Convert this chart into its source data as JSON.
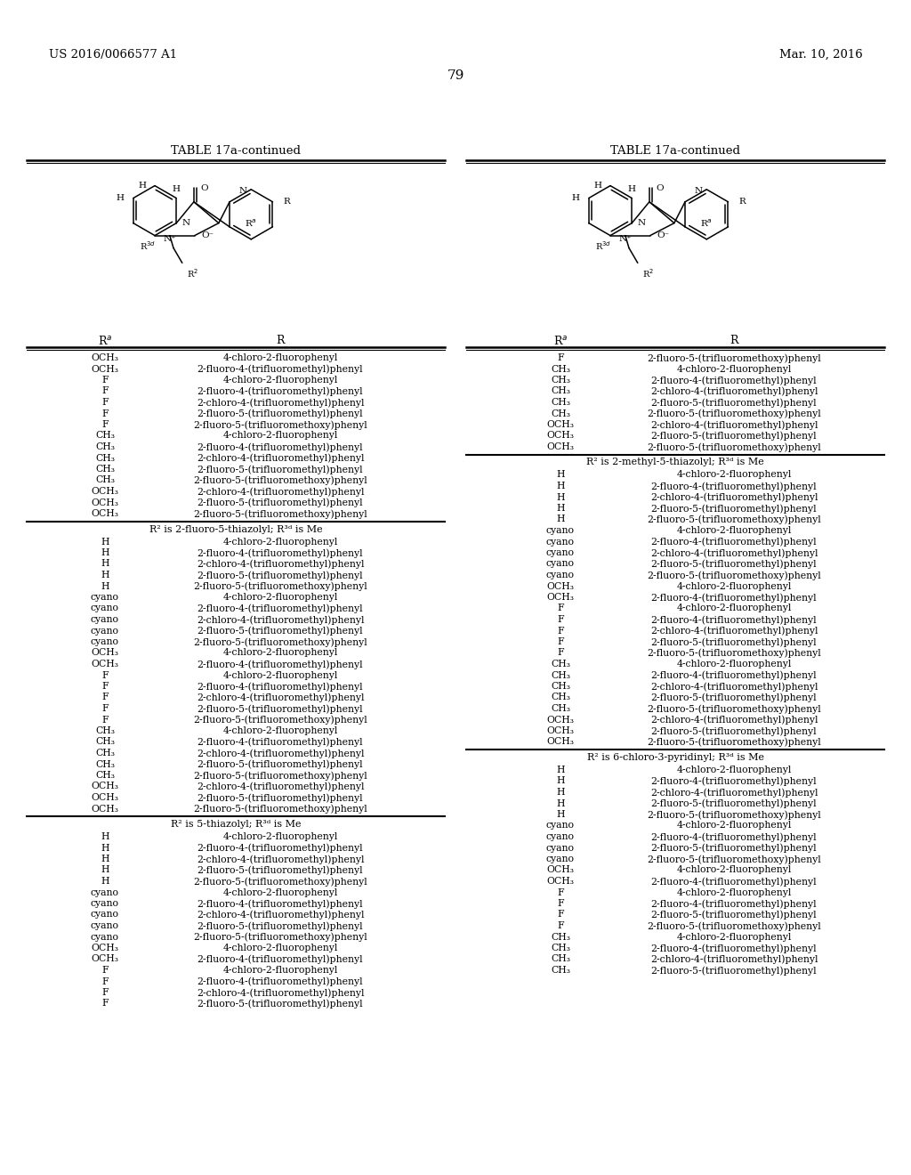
{
  "patent_number": "US 2016/0066577 A1",
  "patent_date": "Mar. 10, 2016",
  "page_number": "79",
  "table_title": "TABLE 17a-continued",
  "background_color": "#ffffff",
  "text_color": "#000000",
  "left_table": {
    "sections": [
      {
        "rows": [
          [
            "OCH₃",
            "4-chloro-2-fluorophenyl"
          ],
          [
            "OCH₃",
            "2-fluoro-4-(trifluoromethyl)phenyl"
          ],
          [
            "F",
            "4-chloro-2-fluorophenyl"
          ],
          [
            "F",
            "2-fluoro-4-(trifluoromethyl)phenyl"
          ],
          [
            "F",
            "2-chloro-4-(trifluoromethyl)phenyl"
          ],
          [
            "F",
            "2-fluoro-5-(trifluoromethyl)phenyl"
          ],
          [
            "F",
            "2-fluoro-5-(trifluoromethoxy)phenyl"
          ],
          [
            "CH₃",
            "4-chloro-2-fluorophenyl"
          ],
          [
            "CH₃",
            "2-fluoro-4-(trifluoromethyl)phenyl"
          ],
          [
            "CH₃",
            "2-chloro-4-(trifluoromethyl)phenyl"
          ],
          [
            "CH₃",
            "2-fluoro-5-(trifluoromethyl)phenyl"
          ],
          [
            "CH₃",
            "2-fluoro-5-(trifluoromethoxy)phenyl"
          ],
          [
            "OCH₃",
            "2-chloro-4-(trifluoromethyl)phenyl"
          ],
          [
            "OCH₃",
            "2-fluoro-5-(trifluoromethyl)phenyl"
          ],
          [
            "OCH₃",
            "2-fluoro-5-(trifluoromethoxy)phenyl"
          ]
        ],
        "section_label": "R² is 2-fluoro-5-thiazolyl; R³ᵈ is Me"
      },
      {
        "rows": [
          [
            "H",
            "4-chloro-2-fluorophenyl"
          ],
          [
            "H",
            "2-fluoro-4-(trifluoromethyl)phenyl"
          ],
          [
            "H",
            "2-chloro-4-(trifluoromethyl)phenyl"
          ],
          [
            "H",
            "2-fluoro-5-(trifluoromethyl)phenyl"
          ],
          [
            "H",
            "2-fluoro-5-(trifluoromethoxy)phenyl"
          ],
          [
            "cyano",
            "4-chloro-2-fluorophenyl"
          ],
          [
            "cyano",
            "2-fluoro-4-(trifluoromethyl)phenyl"
          ],
          [
            "cyano",
            "2-chloro-4-(trifluoromethyl)phenyl"
          ],
          [
            "cyano",
            "2-fluoro-5-(trifluoromethyl)phenyl"
          ],
          [
            "cyano",
            "2-fluoro-5-(trifluoromethoxy)phenyl"
          ],
          [
            "OCH₃",
            "4-chloro-2-fluorophenyl"
          ],
          [
            "OCH₃",
            "2-fluoro-4-(trifluoromethyl)phenyl"
          ],
          [
            "F",
            "4-chloro-2-fluorophenyl"
          ],
          [
            "F",
            "2-fluoro-4-(trifluoromethyl)phenyl"
          ],
          [
            "F",
            "2-chloro-4-(trifluoromethyl)phenyl"
          ],
          [
            "F",
            "2-fluoro-5-(trifluoromethyl)phenyl"
          ],
          [
            "F",
            "2-fluoro-5-(trifluoromethoxy)phenyl"
          ],
          [
            "CH₃",
            "4-chloro-2-fluorophenyl"
          ],
          [
            "CH₃",
            "2-fluoro-4-(trifluoromethyl)phenyl"
          ],
          [
            "CH₃",
            "2-chloro-4-(trifluoromethyl)phenyl"
          ],
          [
            "CH₃",
            "2-fluoro-5-(trifluoromethyl)phenyl"
          ],
          [
            "CH₃",
            "2-fluoro-5-(trifluoromethoxy)phenyl"
          ],
          [
            "OCH₃",
            "2-chloro-4-(trifluoromethyl)phenyl"
          ],
          [
            "OCH₃",
            "2-fluoro-5-(trifluoromethyl)phenyl"
          ],
          [
            "OCH₃",
            "2-fluoro-5-(trifluoromethoxy)phenyl"
          ]
        ],
        "section_label": "R² is 5-thiazolyl; R³ᵈ is Me"
      },
      {
        "rows": [
          [
            "H",
            "4-chloro-2-fluorophenyl"
          ],
          [
            "H",
            "2-fluoro-4-(trifluoromethyl)phenyl"
          ],
          [
            "H",
            "2-chloro-4-(trifluoromethyl)phenyl"
          ],
          [
            "H",
            "2-fluoro-5-(trifluoromethyl)phenyl"
          ],
          [
            "H",
            "2-fluoro-5-(trifluoromethoxy)phenyl"
          ],
          [
            "cyano",
            "4-chloro-2-fluorophenyl"
          ],
          [
            "cyano",
            "2-fluoro-4-(trifluoromethyl)phenyl"
          ],
          [
            "cyano",
            "2-chloro-4-(trifluoromethyl)phenyl"
          ],
          [
            "cyano",
            "2-fluoro-5-(trifluoromethyl)phenyl"
          ],
          [
            "cyano",
            "2-fluoro-5-(trifluoromethoxy)phenyl"
          ],
          [
            "OCH₃",
            "4-chloro-2-fluorophenyl"
          ],
          [
            "OCH₃",
            "2-fluoro-4-(trifluoromethyl)phenyl"
          ],
          [
            "F",
            "4-chloro-2-fluorophenyl"
          ],
          [
            "F",
            "2-fluoro-4-(trifluoromethyl)phenyl"
          ],
          [
            "F",
            "2-chloro-4-(trifluoromethyl)phenyl"
          ],
          [
            "F",
            "2-fluoro-5-(trifluoromethyl)phenyl"
          ]
        ],
        "section_label": null
      }
    ]
  },
  "right_table": {
    "sections": [
      {
        "rows": [
          [
            "F",
            "2-fluoro-5-(trifluoromethoxy)phenyl"
          ],
          [
            "CH₃",
            "4-chloro-2-fluorophenyl"
          ],
          [
            "CH₃",
            "2-fluoro-4-(trifluoromethyl)phenyl"
          ],
          [
            "CH₃",
            "2-chloro-4-(trifluoromethyl)phenyl"
          ],
          [
            "CH₃",
            "2-fluoro-5-(trifluoromethyl)phenyl"
          ],
          [
            "CH₃",
            "2-fluoro-5-(trifluoromethoxy)phenyl"
          ],
          [
            "OCH₃",
            "2-chloro-4-(trifluoromethyl)phenyl"
          ],
          [
            "OCH₃",
            "2-fluoro-5-(trifluoromethyl)phenyl"
          ],
          [
            "OCH₃",
            "2-fluoro-5-(trifluoromethoxy)phenyl"
          ]
        ],
        "section_label": "R² is 2-methyl-5-thiazolyl; R³ᵈ is Me"
      },
      {
        "rows": [
          [
            "H",
            "4-chloro-2-fluorophenyl"
          ],
          [
            "H",
            "2-fluoro-4-(trifluoromethyl)phenyl"
          ],
          [
            "H",
            "2-chloro-4-(trifluoromethyl)phenyl"
          ],
          [
            "H",
            "2-fluoro-5-(trifluoromethyl)phenyl"
          ],
          [
            "H",
            "2-fluoro-5-(trifluoromethoxy)phenyl"
          ],
          [
            "cyano",
            "4-chloro-2-fluorophenyl"
          ],
          [
            "cyano",
            "2-fluoro-4-(trifluoromethyl)phenyl"
          ],
          [
            "cyano",
            "2-chloro-4-(trifluoromethyl)phenyl"
          ],
          [
            "cyano",
            "2-fluoro-5-(trifluoromethyl)phenyl"
          ],
          [
            "cyano",
            "2-fluoro-5-(trifluoromethoxy)phenyl"
          ],
          [
            "OCH₃",
            "4-chloro-2-fluorophenyl"
          ],
          [
            "OCH₃",
            "2-fluoro-4-(trifluoromethyl)phenyl"
          ],
          [
            "F",
            "4-chloro-2-fluorophenyl"
          ],
          [
            "F",
            "2-fluoro-4-(trifluoromethyl)phenyl"
          ],
          [
            "F",
            "2-chloro-4-(trifluoromethyl)phenyl"
          ],
          [
            "F",
            "2-fluoro-5-(trifluoromethyl)phenyl"
          ],
          [
            "F",
            "2-fluoro-5-(trifluoromethoxy)phenyl"
          ],
          [
            "CH₃",
            "4-chloro-2-fluorophenyl"
          ],
          [
            "CH₃",
            "2-fluoro-4-(trifluoromethyl)phenyl"
          ],
          [
            "CH₃",
            "2-chloro-4-(trifluoromethyl)phenyl"
          ],
          [
            "CH₃",
            "2-fluoro-5-(trifluoromethyl)phenyl"
          ],
          [
            "CH₃",
            "2-fluoro-5-(trifluoromethoxy)phenyl"
          ],
          [
            "OCH₃",
            "2-chloro-4-(trifluoromethyl)phenyl"
          ],
          [
            "OCH₃",
            "2-fluoro-5-(trifluoromethyl)phenyl"
          ],
          [
            "OCH₃",
            "2-fluoro-5-(trifluoromethoxy)phenyl"
          ]
        ],
        "section_label": "R² is 6-chloro-3-pyridinyl; R³ᵈ is Me"
      },
      {
        "rows": [
          [
            "H",
            "4-chloro-2-fluorophenyl"
          ],
          [
            "H",
            "2-fluoro-4-(trifluoromethyl)phenyl"
          ],
          [
            "H",
            "2-chloro-4-(trifluoromethyl)phenyl"
          ],
          [
            "H",
            "2-fluoro-5-(trifluoromethyl)phenyl"
          ],
          [
            "H",
            "2-fluoro-5-(trifluoromethoxy)phenyl"
          ],
          [
            "cyano",
            "4-chloro-2-fluorophenyl"
          ],
          [
            "cyano",
            "2-fluoro-4-(trifluoromethyl)phenyl"
          ],
          [
            "cyano",
            "2-fluoro-5-(trifluoromethyl)phenyl"
          ],
          [
            "cyano",
            "2-fluoro-5-(trifluoromethoxy)phenyl"
          ],
          [
            "OCH₃",
            "4-chloro-2-fluorophenyl"
          ],
          [
            "OCH₃",
            "2-fluoro-4-(trifluoromethyl)phenyl"
          ],
          [
            "F",
            "4-chloro-2-fluorophenyl"
          ],
          [
            "F",
            "2-fluoro-4-(trifluoromethyl)phenyl"
          ],
          [
            "F",
            "2-fluoro-5-(trifluoromethyl)phenyl"
          ],
          [
            "F",
            "2-fluoro-5-(trifluoromethoxy)phenyl"
          ],
          [
            "CH₃",
            "4-chloro-2-fluorophenyl"
          ],
          [
            "CH₃",
            "2-fluoro-4-(trifluoromethyl)phenyl"
          ],
          [
            "CH₃",
            "2-chloro-4-(trifluoromethyl)phenyl"
          ],
          [
            "CH₃",
            "2-fluoro-5-(trifluoromethyl)phenyl"
          ]
        ],
        "section_label": null
      }
    ]
  }
}
